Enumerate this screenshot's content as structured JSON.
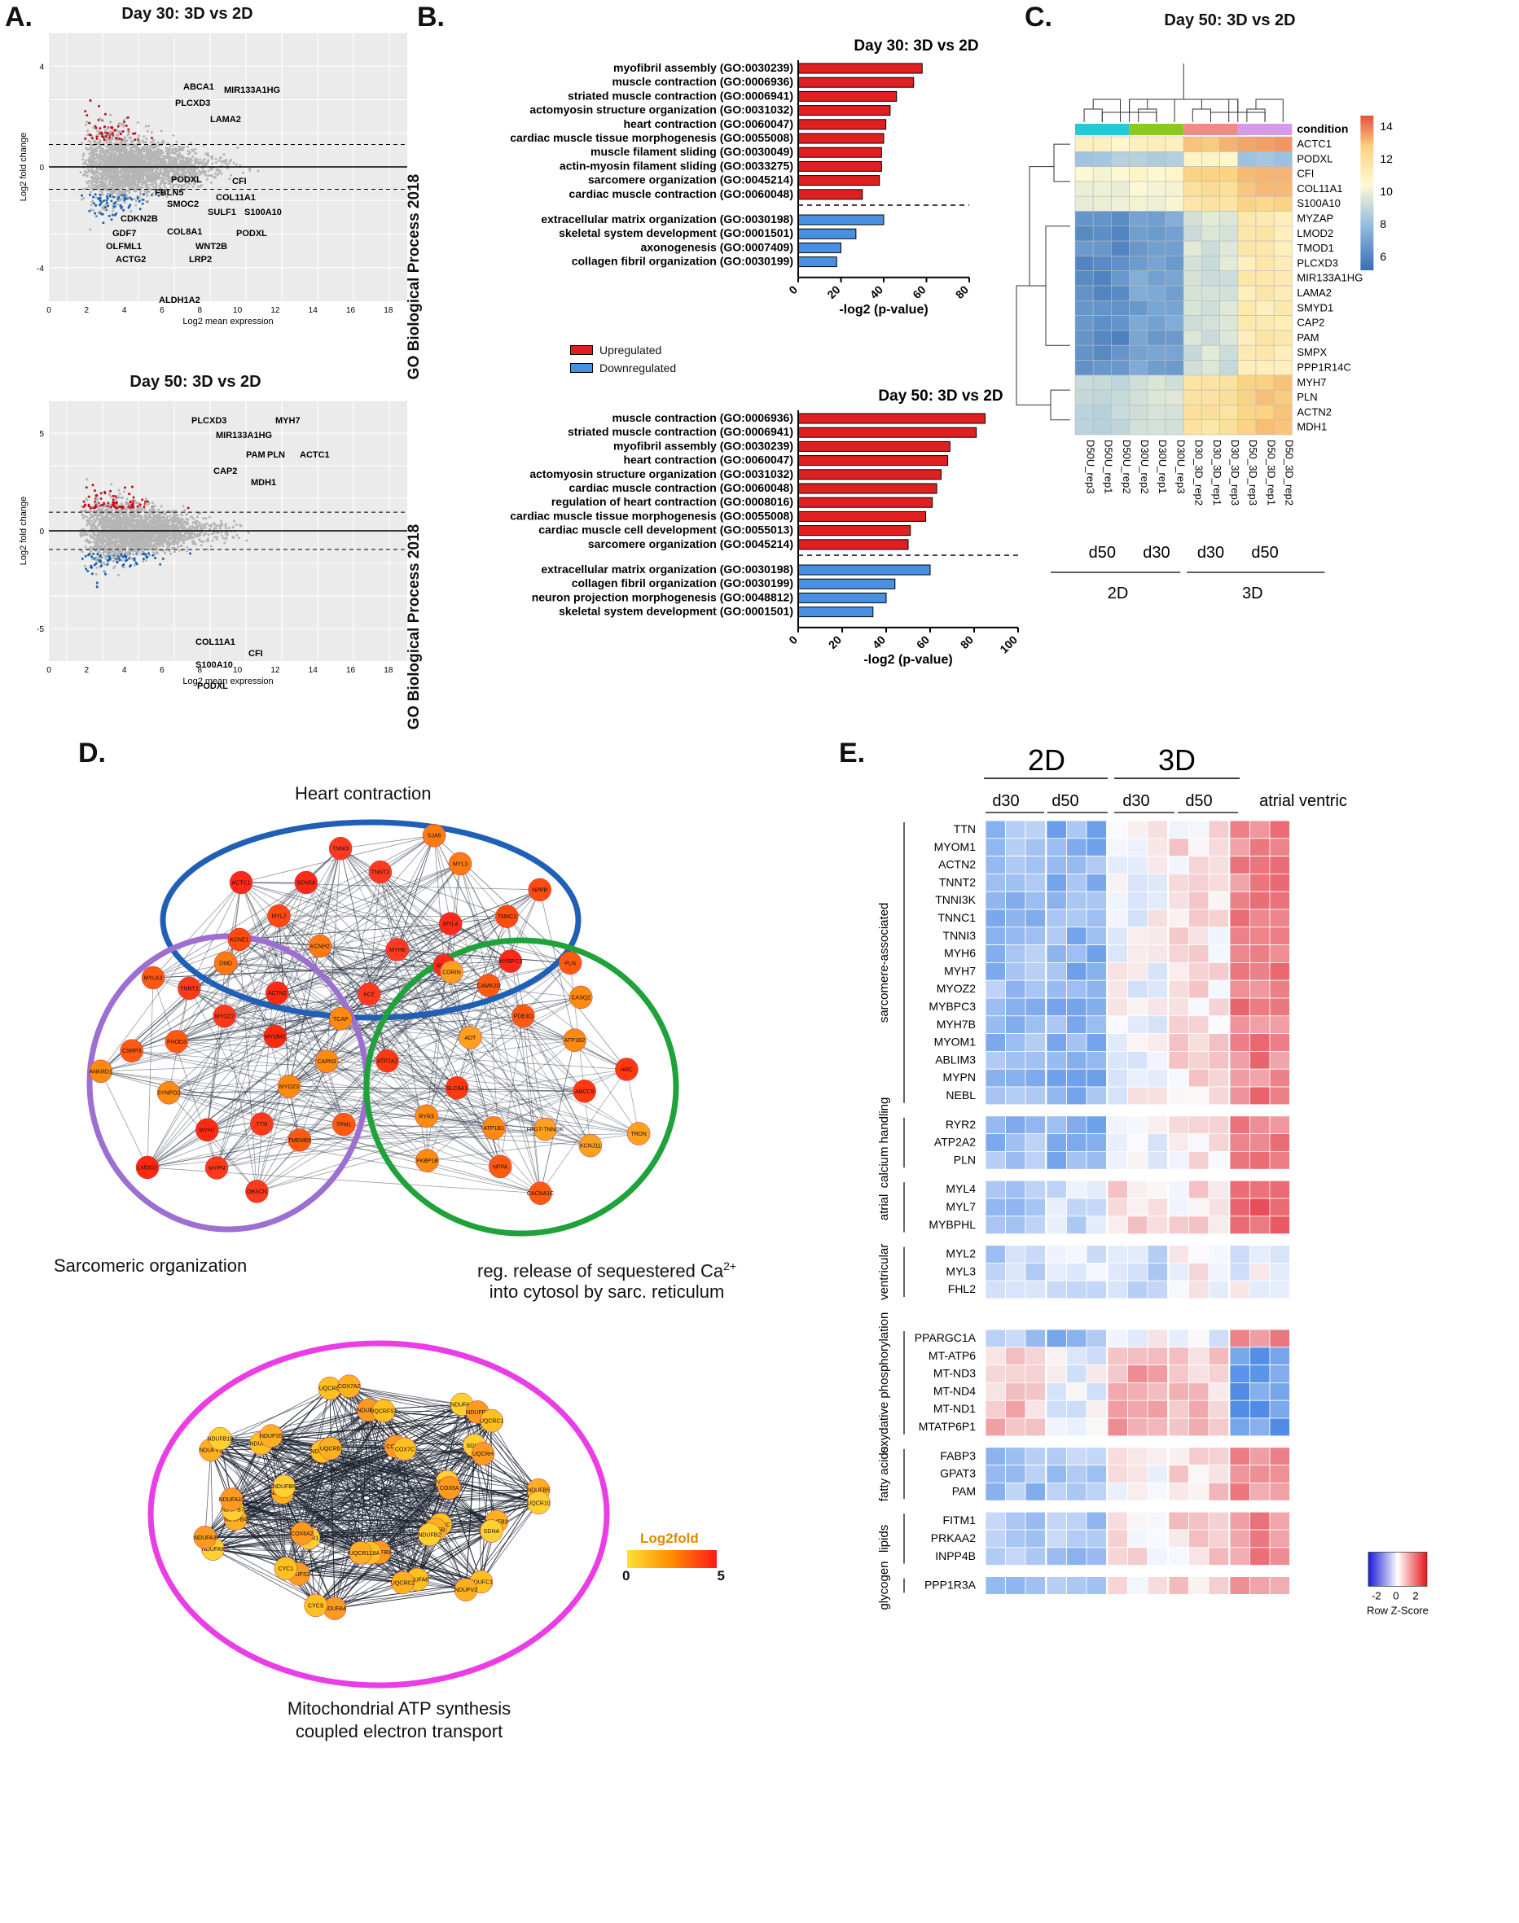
{
  "panelA": {
    "letter": "A.",
    "plot1": {
      "title": "Day 30: 3D vs 2D",
      "ylabel": "Log2 fold change",
      "xlabel": "Log2 mean expression",
      "xticks": [
        "0",
        "2",
        "4",
        "6",
        "8",
        "10",
        "12",
        "14",
        "16",
        "18"
      ],
      "yticks": [
        "4",
        "0",
        "-4"
      ],
      "genes_up": [
        "ABCA1",
        "MIR133A1HG",
        "PLCXD3",
        "LAMA2"
      ],
      "genes_down": [
        "PODXL",
        "FBLN5",
        "CFI",
        "COL11A1",
        "SMOC2",
        "SULF1",
        "S100A10",
        "CDKN2B",
        "GDF7",
        "COL8A1",
        "PODXL",
        "OLFML1",
        "WNT2B",
        "ACTG2",
        "LRP2",
        "ALDH1A2"
      ]
    },
    "plot2": {
      "title": "Day 50: 3D vs 2D",
      "ylabel": "Log2 fold change",
      "xlabel": "Log2 mean expression",
      "xticks": [
        "0",
        "2",
        "4",
        "6",
        "8",
        "10",
        "12",
        "14",
        "16",
        "18"
      ],
      "yticks": [
        "5",
        "0",
        "-5"
      ],
      "genes_up": [
        "PLCXD3",
        "MYH7",
        "MIR133A1HG",
        "PAM",
        "PLN",
        "ACTC1",
        "CAP2",
        "MDH1"
      ],
      "genes_down": [
        "COL11A1",
        "CFI",
        "S100A10",
        "PODXL"
      ]
    }
  },
  "panelB": {
    "letter": "B.",
    "ylabel": "GO Biological Process 2018",
    "legend_up": "Upregulated",
    "legend_down": "Downregulated",
    "up_color": "#e02020",
    "down_color": "#4a90e2",
    "chart_data": [
      {
        "type": "bar",
        "title": "Day 30: 3D vs 2D",
        "xlabel": "-log2 (p-value)",
        "xlim": [
          0,
          80
        ],
        "xticks": [
          "0",
          "20",
          "40",
          "60",
          "80"
        ],
        "categories": [
          "myofibril assembly (GO:0030239)",
          "muscle contraction (GO:0006936)",
          "striated muscle contraction (GO:0006941)",
          "actomyosin structure organization (GO:0031032)",
          "heart contraction (GO:0060047)",
          "cardiac muscle tissue morphogenesis (GO:0055008)",
          "muscle filament sliding (GO:0030049)",
          "actin-myosin filament sliding (GO:0033275)",
          "sarcomere organization (GO:0045214)",
          "cardiac muscle contraction (GO:0060048)",
          "extracellular matrix organization (GO:0030198)",
          "skeletal system development (GO:0001501)",
          "axonogenesis (GO:0007409)",
          "collagen fibril organization (GO:0030199)"
        ],
        "values": [
          58,
          54,
          46,
          43,
          41,
          40,
          39,
          39,
          38,
          30,
          40,
          27,
          20,
          18
        ],
        "direction": [
          "up",
          "up",
          "up",
          "up",
          "up",
          "up",
          "up",
          "up",
          "up",
          "up",
          "down",
          "down",
          "down",
          "down"
        ]
      },
      {
        "type": "bar",
        "title": "Day 50: 3D vs 2D",
        "xlabel": "-log2 (p-value)",
        "xlim": [
          0,
          100
        ],
        "xticks": [
          "0",
          "20",
          "40",
          "60",
          "80",
          "100"
        ],
        "categories": [
          "muscle contraction (GO:0006936)",
          "striated muscle contraction (GO:0006941)",
          "myofibril assembly (GO:0030239)",
          "heart contraction (GO:0060047)",
          "actomyosin structure organization (GO:0031032)",
          "cardiac muscle contraction (GO:0060048)",
          "regulation of heart contraction (GO:0008016)",
          "cardiac muscle tissue morphogenesis (GO:0055008)",
          "cardiac muscle cell development (GO:0055013)",
          "sarcomere organization (GO:0045214)",
          "extracellular matrix organization (GO:0030198)",
          "collagen fibril organization (GO:0030199)",
          "neuron projection morphogenesis (GO:0048812)",
          "skeletal system development (GO:0001501)"
        ],
        "values": [
          85,
          81,
          69,
          68,
          65,
          63,
          61,
          58,
          51,
          50,
          60,
          44,
          40,
          34
        ],
        "direction": [
          "up",
          "up",
          "up",
          "up",
          "up",
          "up",
          "up",
          "up",
          "up",
          "up",
          "down",
          "down",
          "down",
          "down"
        ]
      }
    ]
  },
  "panelC": {
    "letter": "C.",
    "title": "Day 50: 3D vs 2D",
    "legend_title": "condition",
    "scale_ticks": [
      "14",
      "12",
      "10",
      "8",
      "6"
    ],
    "genes": [
      "ACTC1",
      "PODXL",
      "CFI",
      "COL11A1",
      "S100A10",
      "MYZAP",
      "LMOD2",
      "TMOD1",
      "PLCXD3",
      "MIR133A1HG",
      "LAMA2",
      "SMYD1",
      "CAP2",
      "PAM",
      "SMPX",
      "PPP1R14C",
      "MYH7",
      "PLN",
      "ACTN2",
      "MDH1"
    ],
    "samples": [
      "D50U_rep3",
      "D50U_rep1",
      "D50U_rep2",
      "D30U_rep2",
      "D30U_rep1",
      "D30U_rep3",
      "D30_3D_rep2",
      "D30_3D_rep1",
      "D30_3D_rep3",
      "D50_3D_rep3",
      "D50_3D_rep1",
      "D50_3D_rep2"
    ],
    "group_labels": [
      "d50",
      "d30",
      "d30",
      "d50"
    ],
    "dim_labels": [
      "2D",
      "3D"
    ],
    "condition_colors": [
      "#27c9d6",
      "#8bc820",
      "#f08a88",
      "#d79ae8"
    ]
  },
  "panelD": {
    "letter": "D.",
    "cluster1": "Heart contraction",
    "cluster2": "Sarcomeric organization",
    "cluster3_line1": "reg. release of sequestered Ca",
    "cluster3_sup": "2+",
    "cluster3_line2": "into cytosol by sarc. reticulum",
    "cluster4_line1": "Mitochondrial ATP synthesis",
    "cluster4_line2": "coupled electron transport",
    "legend_title": "Log2fold",
    "legend_min": "0",
    "legend_max": "5",
    "nodes_heart": [
      "MYL4",
      "KCNE1",
      "SJA6",
      "MYH6",
      "ACTC1",
      "NPPB",
      "KCNH2",
      "TNNI3",
      "MYBPC3",
      "MYL2",
      "MYL3",
      "ACE",
      "SCN5A",
      "TNNC1",
      "DMD",
      "TNNT2",
      "RYR2"
    ],
    "nodes_sarc": [
      "TTN",
      "CSRP3",
      "TCAP",
      "MYH7",
      "TNNT2",
      "TPM1",
      "SYNPO2",
      "ACTN2",
      "OBSCN",
      "FHOD3",
      "CAPN3",
      "LMOD2",
      "MYOZ2",
      "TMEM65",
      "ANKRD1",
      "MYOM2",
      "MYPN",
      "MYLK3",
      "MYOZ3"
    ],
    "nodes_ca": [
      "ATP1B1",
      "CAMK2D",
      "TRDN",
      "SLC8A1",
      "CASQ2",
      "CACNA1C",
      "ADT",
      "HRC",
      "FKBP1B",
      "PDE4D",
      "KCNJ11",
      "ATP2A2",
      "ATP1B2",
      "NPPA",
      "CORIN",
      "ABCC9",
      "RYR3",
      "PLN",
      "FPGT-TNNI3K"
    ],
    "nodes_mito": [
      "COX6C",
      "NDUFB4",
      "NDUFA8",
      "NDUFB9",
      "NDUFA1",
      "NDUFB5",
      "COX4I1",
      "NDUFA5",
      "NDUFC1",
      "NDUFA12",
      "SDHD",
      "NDUFA4",
      "NDUFS3",
      "NDUFB3",
      "NDUFA9",
      "COX7B",
      "NDUFA6",
      "NDUFV1",
      "NDUFB1",
      "NDUFS2",
      "UQCRQ",
      "COX5B",
      "NDUFB7",
      "NDUFB8",
      "COX8A",
      "NDUFS5",
      "UQCR10",
      "COX6A2",
      "UQCRFS1",
      "NDUFV2",
      "NDUFB6",
      "UQCRH",
      "CYCS",
      "UQCRB",
      "SDHA",
      "NDUFA3",
      "COX7C",
      "UQCRC2",
      "NDUFB10",
      "COX5A",
      "CYC1",
      "COX7A2",
      "NDUFB2",
      "NDUFA10",
      "UQCRC1",
      "UQCR11"
    ]
  },
  "panelE": {
    "letter": "E.",
    "top_2d": "2D",
    "top_3d": "3D",
    "sub_cols": [
      "d30",
      "d50",
      "d30",
      "d50",
      "atrial ventric"
    ],
    "scale_label": "Row Z-Score",
    "scale_ticks": [
      "-2",
      "0",
      "2"
    ],
    "groups": [
      {
        "name": "sarcomere-associated",
        "genes": [
          "TTN",
          "MYOM1",
          "ACTN2",
          "TNNT2",
          "TNNI3K",
          "TNNC1",
          "TNNI3",
          "MYH6",
          "MYH7",
          "MYOZ2",
          "MYBPC3",
          "MYH7B",
          "MYOM1",
          "ABLIM3",
          "MYPN",
          "NEBL"
        ]
      },
      {
        "name": "calcium handling",
        "genes": [
          "RYR2",
          "ATP2A2",
          "PLN"
        ]
      },
      {
        "name": "atrial",
        "genes": [
          "MYL4",
          "MYL7",
          "MYBPHL"
        ]
      },
      {
        "name": "ventricular",
        "genes": [
          "MYL2",
          "MYL3",
          "FHL2"
        ]
      },
      {
        "name": "oxydative phosphorylation",
        "genes": [
          "PPARGC1A",
          "MT-ATP6",
          "MT-ND3",
          "MT-ND4",
          "MT-ND1",
          "MTATP6P1"
        ]
      },
      {
        "name": "fatty acids",
        "genes": [
          "FABP3",
          "GPAT3",
          "PAM"
        ]
      },
      {
        "name": "lipids",
        "genes": [
          "FITM1",
          "PRKAA2",
          "INPP4B"
        ]
      },
      {
        "name": "glycogen",
        "genes": [
          "PPP1R3A"
        ]
      }
    ]
  }
}
